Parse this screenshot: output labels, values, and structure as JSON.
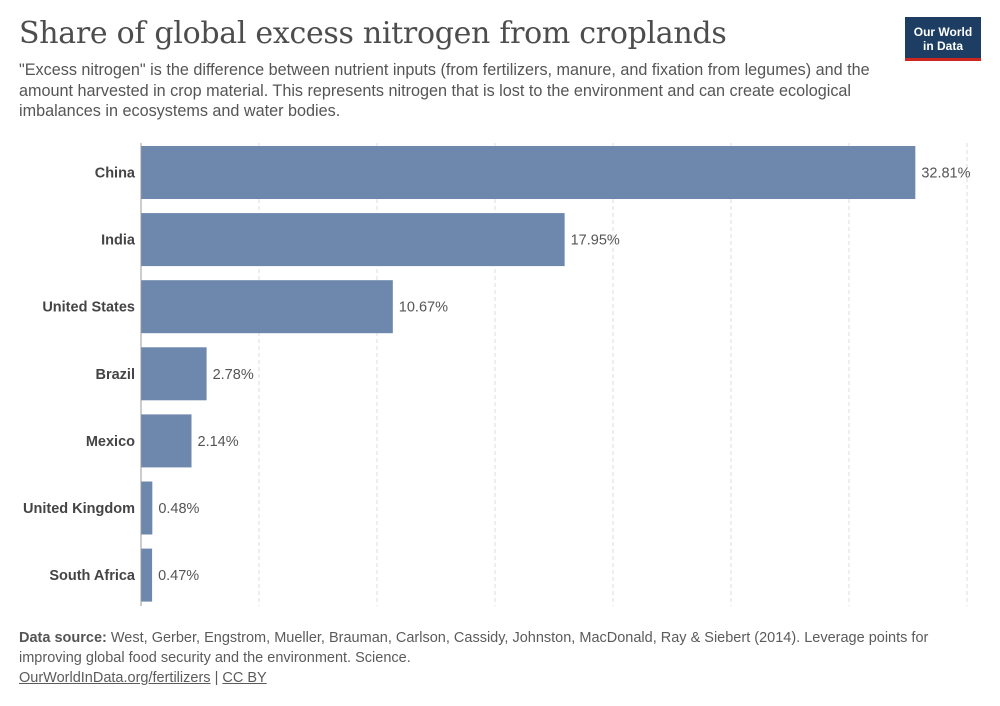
{
  "header": {
    "title": "Share of global excess nitrogen from croplands",
    "subtitle": "\"Excess nitrogen\" is the difference between nutrient inputs (from fertilizers, manure, and fixation from legumes) and the amount harvested in crop material. This represents nitrogen that is lost to the environment and can create ecological imbalances in ecosystems and water bodies."
  },
  "logo": {
    "line1": "Our World",
    "line2": "in Data"
  },
  "footer": {
    "source_label": "Data source:",
    "source_text": "West, Gerber, Engstrom, Mueller, Brauman, Carlson, Cassidy, Johnston, MacDonald, Ray & Siebert (2014). Leverage points for improving global food security and the environment. Science.",
    "link_text": "OurWorldInData.org/fertilizers",
    "separator": "|",
    "license": "CC BY"
  },
  "colors": {
    "bar": "#6d87ad",
    "grid": "#dddddd",
    "axis": "#999999",
    "label": "#444444",
    "value": "#555555"
  },
  "chart_data": {
    "type": "bar",
    "orientation": "horizontal",
    "categories": [
      "China",
      "India",
      "United States",
      "Brazil",
      "Mexico",
      "United Kingdom",
      "South Africa"
    ],
    "values": [
      32.81,
      17.95,
      10.67,
      2.78,
      2.14,
      0.48,
      0.47
    ],
    "value_labels": [
      "32.81%",
      "17.95%",
      "10.67%",
      "2.78%",
      "2.14%",
      "0.48%",
      "0.47%"
    ],
    "unit": "%",
    "xlim": [
      0,
      35
    ],
    "grid_step": 5,
    "grid": true
  }
}
